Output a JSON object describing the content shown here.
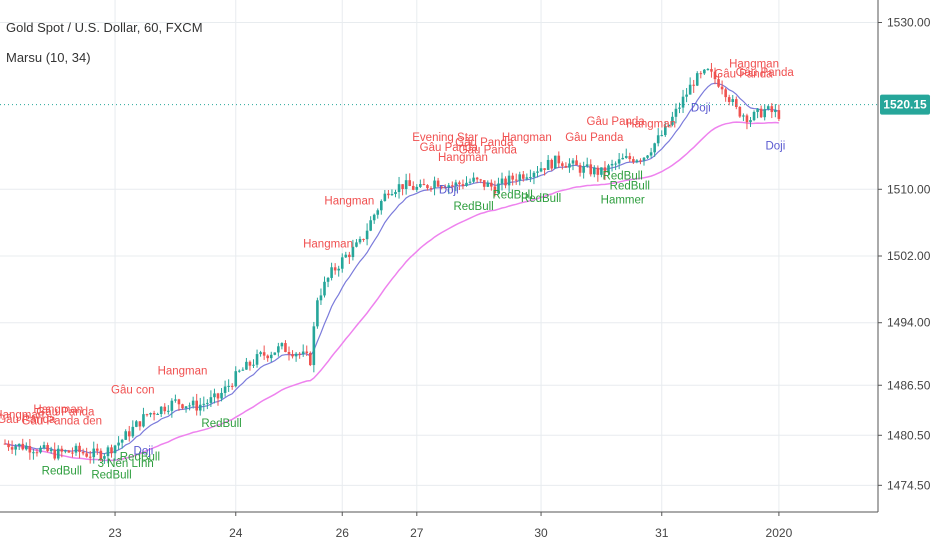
{
  "header": {
    "symbol_line": "Gold Spot / U.S. Dollar, 60, FXCM",
    "indicator_line": "Marsu (10, 34)"
  },
  "colors": {
    "bull": "#26a69a",
    "bear": "#ef5350",
    "ma_fast": "#7b7bdb",
    "ma_slow": "#ee82ee",
    "pattern_bear": "#f05050",
    "pattern_bull": "#2e9e3e",
    "pattern_doji": "#5a5ad0",
    "price_line": "#26a69a",
    "grid": "#e8ecef",
    "axis_text": "#444444"
  },
  "chart_data": {
    "type": "candlestick",
    "ylim": [
      1472.5,
      1531.5
    ],
    "y_ticks": [
      1474.5,
      1480.5,
      1486.5,
      1494.0,
      1502.0,
      1510.0,
      1520.15,
      1530.0
    ],
    "y_tick_labels": [
      "1474.50",
      "1480.50",
      "1486.50",
      "1494.00",
      "1502.00",
      "1510.00",
      "1520.15",
      "1530.00"
    ],
    "current_price": 1520.15,
    "current_price_label": "1520.15",
    "x_ticks": [
      {
        "label": "23",
        "bar": 31
      },
      {
        "label": "24",
        "bar": 65
      },
      {
        "label": "26",
        "bar": 95
      },
      {
        "label": "27",
        "bar": 116
      },
      {
        "label": "30",
        "bar": 151
      },
      {
        "label": "31",
        "bar": 185
      },
      {
        "label": "2020",
        "bar": 218
      }
    ],
    "bar_count": 250,
    "price_waypoints": [
      [
        0,
        1479.5
      ],
      [
        8,
        1479.0
      ],
      [
        14,
        1478.3
      ],
      [
        20,
        1478.6
      ],
      [
        24,
        1478.2
      ],
      [
        28,
        1478.4
      ],
      [
        33,
        1480.0
      ],
      [
        40,
        1483.0
      ],
      [
        48,
        1484.5
      ],
      [
        54,
        1484.0
      ],
      [
        60,
        1485.0
      ],
      [
        66,
        1488.0
      ],
      [
        72,
        1490.0
      ],
      [
        78,
        1491.0
      ],
      [
        82,
        1490.5
      ],
      [
        86,
        1489.5
      ],
      [
        88,
        1497.0
      ],
      [
        92,
        1500.0
      ],
      [
        96,
        1502.0
      ],
      [
        100,
        1503.5
      ],
      [
        104,
        1507.0
      ],
      [
        108,
        1510.0
      ],
      [
        112,
        1510.5
      ],
      [
        117,
        1510.0
      ],
      [
        121,
        1511.0
      ],
      [
        126,
        1510.5
      ],
      [
        132,
        1511.0
      ],
      [
        138,
        1510.2
      ],
      [
        144,
        1511.5
      ],
      [
        150,
        1512.5
      ],
      [
        156,
        1513.5
      ],
      [
        162,
        1512.5
      ],
      [
        168,
        1512.0
      ],
      [
        174,
        1513.5
      ],
      [
        180,
        1514.0
      ],
      [
        186,
        1517.0
      ],
      [
        190,
        1520.0
      ],
      [
        194,
        1523.0
      ],
      [
        198,
        1524.0
      ],
      [
        202,
        1522.5
      ],
      [
        206,
        1519.5
      ],
      [
        210,
        1518.5
      ],
      [
        214,
        1519.5
      ],
      [
        218,
        1519.0
      ]
    ],
    "pattern_labels": [
      {
        "text": "Hangman",
        "type": "bear",
        "bar": 4,
        "price": 1482.5
      },
      {
        "text": "Gâu Panda",
        "type": "bear",
        "bar": 6,
        "price": 1482.0
      },
      {
        "text": "Gâu Panda đen",
        "type": "bear",
        "bar": 16,
        "price": 1481.8
      },
      {
        "text": "Gâu Panda",
        "type": "bear",
        "bar": 17,
        "price": 1482.9
      },
      {
        "text": "Hangman",
        "type": "bear",
        "bar": 15,
        "price": 1483.2
      },
      {
        "text": "Gâu con",
        "type": "bear",
        "bar": 36,
        "price": 1485.5
      },
      {
        "text": "Hangman",
        "type": "bear",
        "bar": 50,
        "price": 1487.8
      },
      {
        "text": "Hangman",
        "type": "bear",
        "bar": 91,
        "price": 1503.0
      },
      {
        "text": "Hangman",
        "type": "bear",
        "bar": 97,
        "price": 1508.2
      },
      {
        "text": "Evening Star",
        "type": "bear",
        "bar": 124,
        "price": 1515.8
      },
      {
        "text": "Gâu Panda",
        "type": "bear",
        "bar": 125,
        "price": 1514.6
      },
      {
        "text": "Gâu Panda",
        "type": "bear",
        "bar": 135,
        "price": 1515.2
      },
      {
        "text": "Gâu Panda",
        "type": "bear",
        "bar": 136,
        "price": 1514.3
      },
      {
        "text": "Hangman",
        "type": "bear",
        "bar": 129,
        "price": 1513.4
      },
      {
        "text": "Hangman",
        "type": "bear",
        "bar": 147,
        "price": 1515.8
      },
      {
        "text": "Gâu Panda",
        "type": "bear",
        "bar": 166,
        "price": 1515.8
      },
      {
        "text": "Gâu Panda",
        "type": "bear",
        "bar": 172,
        "price": 1517.7
      },
      {
        "text": "Hangman",
        "type": "bear",
        "bar": 182,
        "price": 1517.4
      },
      {
        "text": "Gâu Panda",
        "type": "bear",
        "bar": 208,
        "price": 1523.4
      },
      {
        "text": "Hangman",
        "type": "bear",
        "bar": 211,
        "price": 1524.6
      },
      {
        "text": "Gâu Panda",
        "type": "bear",
        "bar": 214,
        "price": 1523.6
      },
      {
        "text": "RedBull",
        "type": "bull",
        "bar": 16,
        "price": 1475.8
      },
      {
        "text": "RedBull",
        "type": "bull",
        "bar": 30,
        "price": 1475.3
      },
      {
        "text": "3 Nến Lính",
        "type": "bull",
        "bar": 34,
        "price": 1476.7
      },
      {
        "text": "RedBull",
        "type": "bull",
        "bar": 38,
        "price": 1477.5
      },
      {
        "text": "RedBull",
        "type": "bull",
        "bar": 61,
        "price": 1481.5
      },
      {
        "text": "RedBull",
        "type": "bull",
        "bar": 132,
        "price": 1507.5
      },
      {
        "text": "RedBull",
        "type": "bull",
        "bar": 143,
        "price": 1508.9
      },
      {
        "text": "RedBull",
        "type": "bull",
        "bar": 151,
        "price": 1508.5
      },
      {
        "text": "RedBull",
        "type": "bull",
        "bar": 174,
        "price": 1511.2
      },
      {
        "text": "RedBull",
        "type": "bull",
        "bar": 176,
        "price": 1510.0
      },
      {
        "text": "Hammer",
        "type": "bull",
        "bar": 174,
        "price": 1508.3
      },
      {
        "text": "Doji",
        "type": "doji",
        "bar": 39,
        "price": 1478.2
      },
      {
        "text": "Doji",
        "type": "doji",
        "bar": 125,
        "price": 1509.5
      },
      {
        "text": "Doji",
        "type": "doji",
        "bar": 196,
        "price": 1519.3
      },
      {
        "text": "Doji",
        "type": "doji",
        "bar": 217,
        "price": 1514.8
      }
    ]
  }
}
